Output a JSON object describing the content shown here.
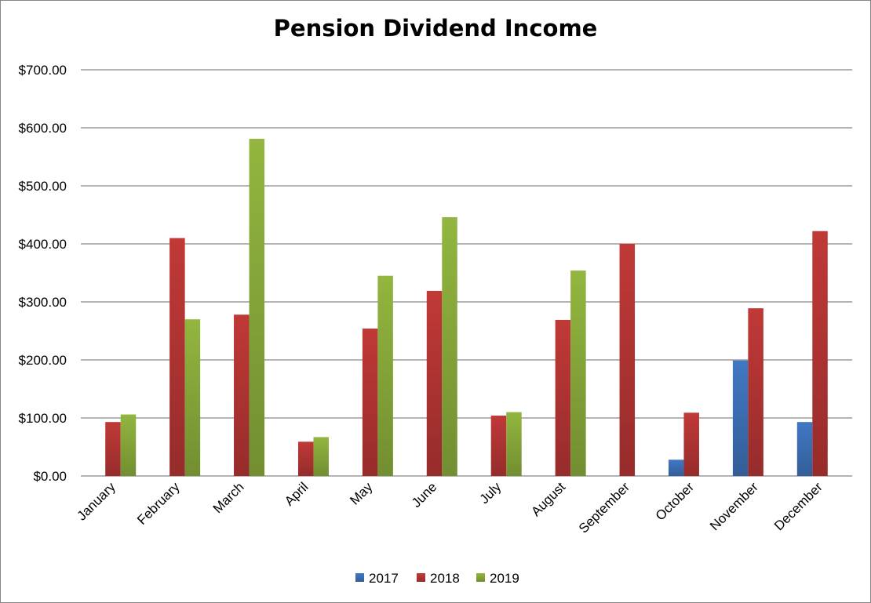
{
  "chart_data": {
    "type": "bar",
    "title": "Pension Dividend Income",
    "categories": [
      "January",
      "February",
      "March",
      "April",
      "May",
      "June",
      "July",
      "August",
      "September",
      "October",
      "November",
      "December"
    ],
    "series": [
      {
        "name": "2017",
        "color": "#4178C3",
        "values": [
          0,
          0,
          0,
          0,
          0,
          0,
          0,
          0,
          0,
          28,
          199,
          93
        ]
      },
      {
        "name": "2018",
        "color": "#C03937",
        "values": [
          93,
          410,
          278,
          59,
          254,
          319,
          104,
          269,
          400,
          109,
          289,
          422
        ]
      },
      {
        "name": "2019",
        "color": "#92B63F",
        "values": [
          106,
          270,
          581,
          67,
          345,
          446,
          110,
          354,
          0,
          0,
          0,
          0
        ]
      }
    ],
    "y_ticks": [
      "$0.00",
      "$100.00",
      "$200.00",
      "$300.00",
      "$400.00",
      "$500.00",
      "$600.00",
      "$700.00"
    ],
    "ylim": [
      0,
      700
    ],
    "grid": true,
    "legend_position": "bottom"
  }
}
